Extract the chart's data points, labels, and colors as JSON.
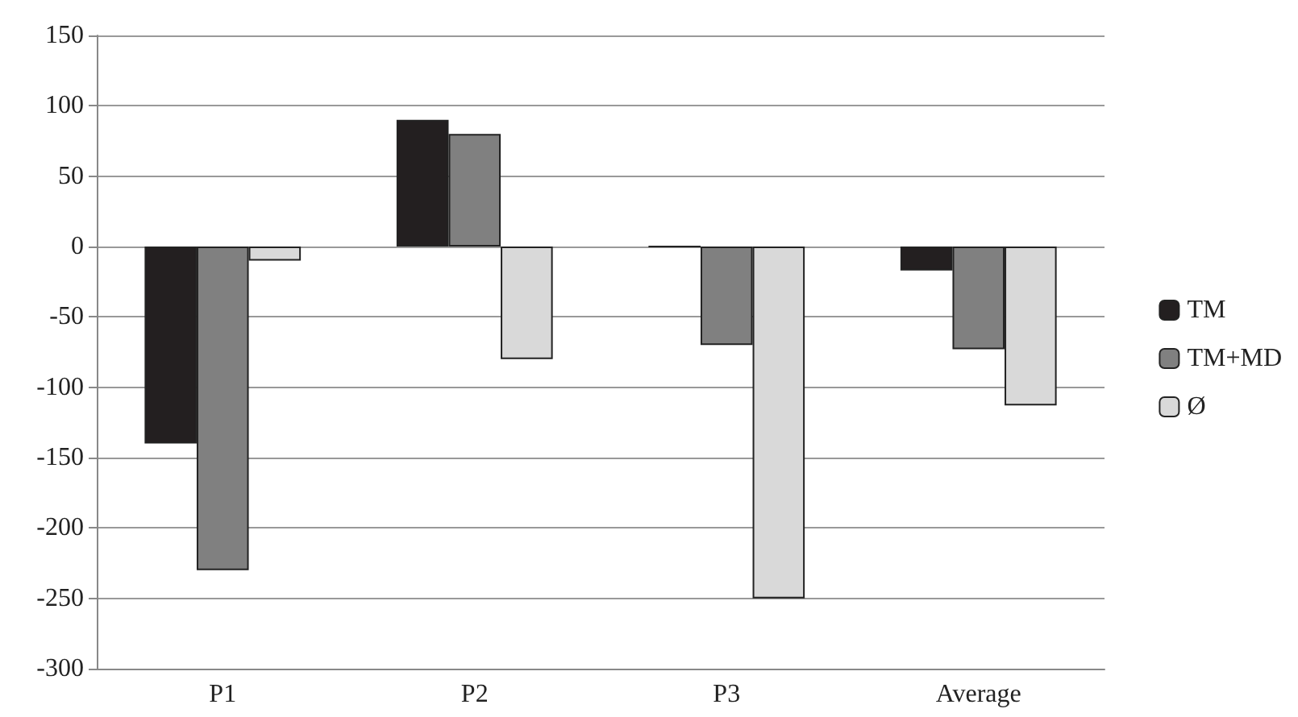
{
  "chart_data": {
    "type": "bar",
    "categories": [
      "P1",
      "P2",
      "P3",
      "Average"
    ],
    "series": [
      {
        "name": "TM",
        "color": "#231f20",
        "values": [
          -140,
          90,
          0,
          -17
        ]
      },
      {
        "name": "TM+MD",
        "color": "#808080",
        "values": [
          -230,
          80,
          -70,
          -73
        ]
      },
      {
        "name": "Ø",
        "color": "#d9d9d9",
        "values": [
          -10,
          -80,
          -250,
          -113
        ]
      }
    ],
    "ylim": [
      -300,
      150
    ],
    "yticks": [
      -300,
      -250,
      -200,
      -150,
      -100,
      -50,
      0,
      50,
      100,
      150
    ],
    "grid": "y",
    "legend": "right"
  }
}
